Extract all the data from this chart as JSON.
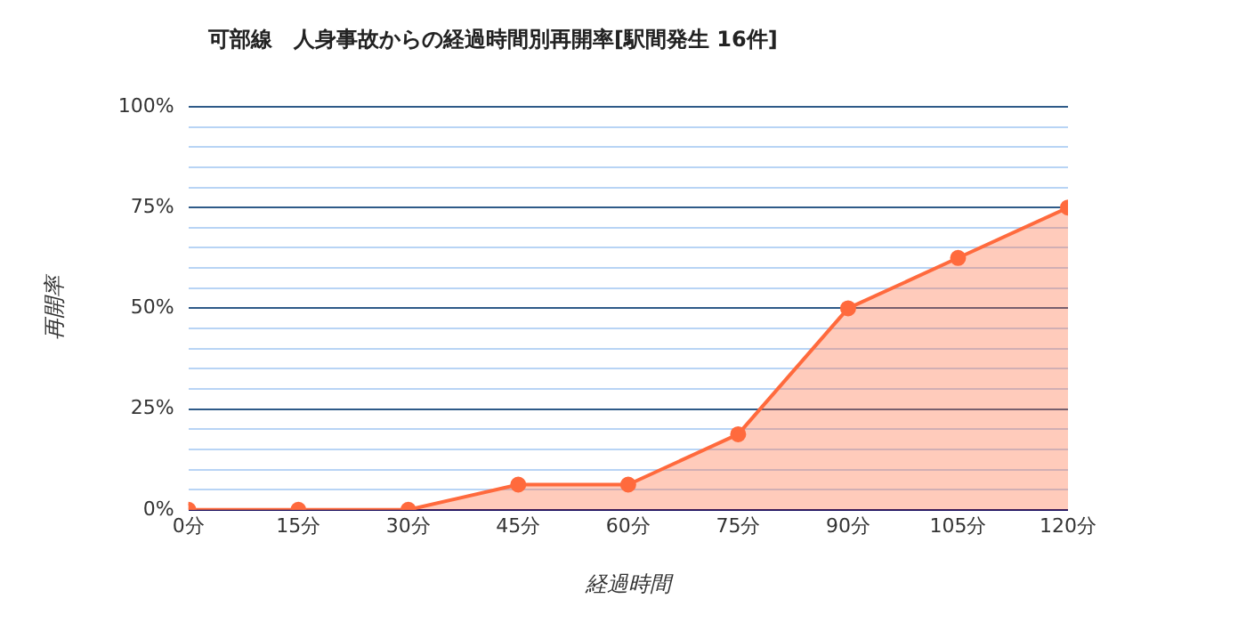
{
  "chart_data": {
    "type": "area",
    "title": "可部線　人身事故からの経過時間別再開率[駅間発生 16件]",
    "xlabel": "経過時間",
    "ylabel": "再開率",
    "x": [
      0,
      15,
      30,
      45,
      60,
      75,
      90,
      105,
      120
    ],
    "series": [
      {
        "color": "#ff6a3d",
        "values": [
          0,
          0,
          0,
          6.25,
          6.25,
          18.75,
          50,
          62.5,
          75
        ]
      }
    ],
    "xlim": [
      0,
      120
    ],
    "xticks": [
      {
        "value": 0,
        "label": "0分"
      },
      {
        "value": 15,
        "label": "15分"
      },
      {
        "value": 30,
        "label": "30分"
      },
      {
        "value": 45,
        "label": "45分"
      },
      {
        "value": 60,
        "label": "60分"
      },
      {
        "value": 75,
        "label": "75分"
      },
      {
        "value": 90,
        "label": "90分"
      },
      {
        "value": 105,
        "label": "105分"
      },
      {
        "value": 120,
        "label": "120分"
      }
    ],
    "ylim": [
      0,
      100
    ],
    "yticks": [
      {
        "value": 0,
        "label": "0%"
      },
      {
        "value": 5,
        "label": null
      },
      {
        "value": 10,
        "label": null
      },
      {
        "value": 15,
        "label": null
      },
      {
        "value": 20,
        "label": null
      },
      {
        "value": 25,
        "label": "25%"
      },
      {
        "value": 30,
        "label": null
      },
      {
        "value": 35,
        "label": null
      },
      {
        "value": 40,
        "label": null
      },
      {
        "value": 45,
        "label": null
      },
      {
        "value": 50,
        "label": "50%"
      },
      {
        "value": 55,
        "label": null
      },
      {
        "value": 60,
        "label": null
      },
      {
        "value": 65,
        "label": null
      },
      {
        "value": 70,
        "label": null
      },
      {
        "value": 75,
        "label": "75%"
      },
      {
        "value": 80,
        "label": null
      },
      {
        "value": 85,
        "label": null
      },
      {
        "value": 90,
        "label": null
      },
      {
        "value": 95,
        "label": null
      },
      {
        "value": 100,
        "label": "100%"
      }
    ],
    "grid": "y",
    "legend": false,
    "marker": "circle",
    "line_style": "solid"
  }
}
